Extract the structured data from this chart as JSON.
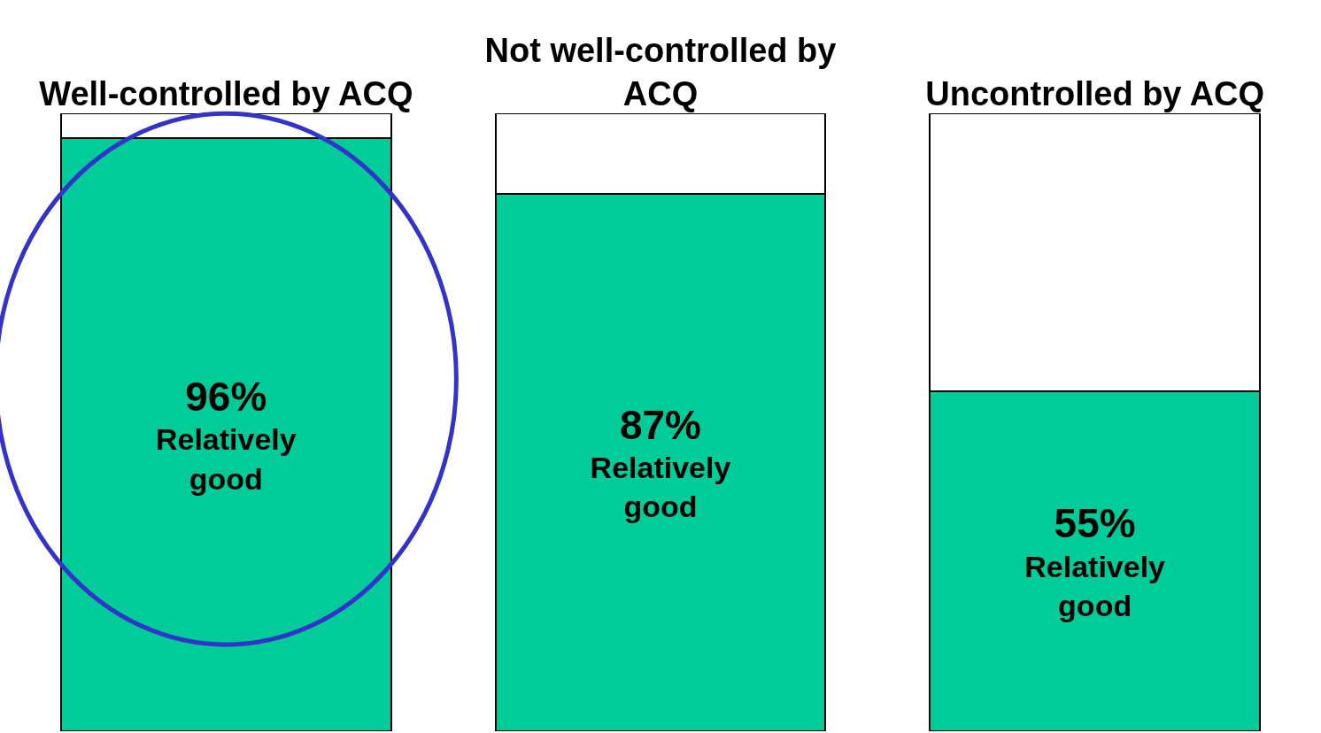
{
  "chart_data": {
    "type": "bar",
    "stacked": true,
    "categories": [
      "Well-controlled by ACQ",
      "Not well-controlled by ACQ",
      "Uncontrolled by ACQ"
    ],
    "series": [
      {
        "name": "Relatively good",
        "color": "#00cc99",
        "values": [
          96,
          87,
          55
        ],
        "value_labels": [
          "96%",
          "87%",
          "55%"
        ]
      },
      {
        "color": "#ffffff",
        "values": [
          4,
          13,
          45
        ]
      }
    ],
    "ylim": [
      0,
      100
    ],
    "legend": false,
    "tick_labels": "x"
  }
}
